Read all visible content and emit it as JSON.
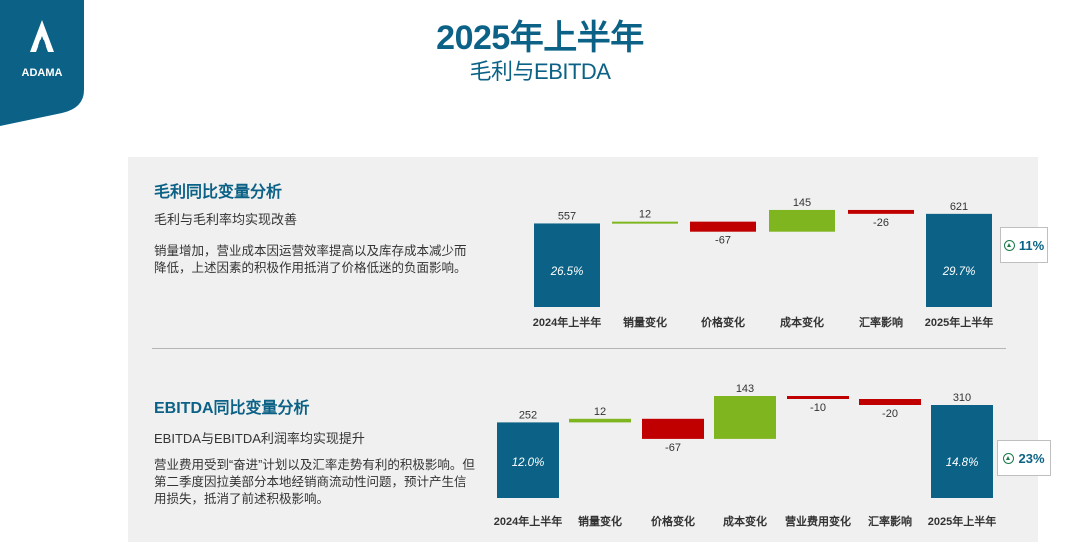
{
  "logo": {
    "text": "ADAMA",
    "color": "#0b6286"
  },
  "header": {
    "title": "2025年上半年",
    "subtitle": "毛利与EBITDA"
  },
  "colors": {
    "total": "#0b6286",
    "increase": "#7fb51f",
    "decrease": "#c00000",
    "accent": "#0b6286"
  },
  "section1": {
    "title": "毛利同比变量分析",
    "subtitle": "毛利与毛利率均实现改善",
    "description": "销量增加，营业成本因运营效率提高以及库存成本减少而降低，上述因素的积极作用抵消了价格低迷的负面影响。",
    "badge": "11%"
  },
  "section2": {
    "title": "EBITDA同比变量分析",
    "subtitle": "EBITDA与EBITDA利润率均实现提升",
    "description": "营业费用受到“奋进”计划以及汇率走势有利的积极影响。但第二季度因拉美部分本地经销商流动性问题，预计产生信用损失，抵消了前述积极影响。",
    "badge": "23%"
  },
  "chart_data": [
    {
      "type": "bar",
      "subtype": "waterfall",
      "categories": [
        "2024年上半年",
        "销量变化",
        "价格变化",
        "成本变化",
        "汇率影响",
        "2025年上半年"
      ],
      "values": [
        557,
        12,
        -67,
        145,
        -26,
        621
      ],
      "value_labels": [
        "557",
        "12",
        "-67",
        "145",
        "-26",
        "621"
      ],
      "kinds": [
        "total",
        "delta",
        "delta",
        "delta",
        "delta",
        "total"
      ],
      "margin_labels": [
        "26.5%",
        "",
        "",
        "",
        "",
        "29.7%"
      ],
      "ylim": [
        0,
        680
      ]
    },
    {
      "type": "bar",
      "subtype": "waterfall",
      "categories": [
        "2024年上半年",
        "销量变化",
        "价格变化",
        "成本变化",
        "营业费用变化",
        "汇率影响",
        "2025年上半年"
      ],
      "values": [
        252,
        12,
        -67,
        143,
        -10,
        -20,
        310
      ],
      "value_labels": [
        "252",
        "12",
        "-67",
        "143",
        "-10",
        "-20",
        "310"
      ],
      "kinds": [
        "total",
        "delta",
        "delta",
        "delta",
        "delta",
        "delta",
        "total"
      ],
      "margin_labels": [
        "12.0%",
        "",
        "",
        "",
        "",
        "",
        "14.8%"
      ],
      "ylim": [
        0,
        340
      ]
    }
  ]
}
